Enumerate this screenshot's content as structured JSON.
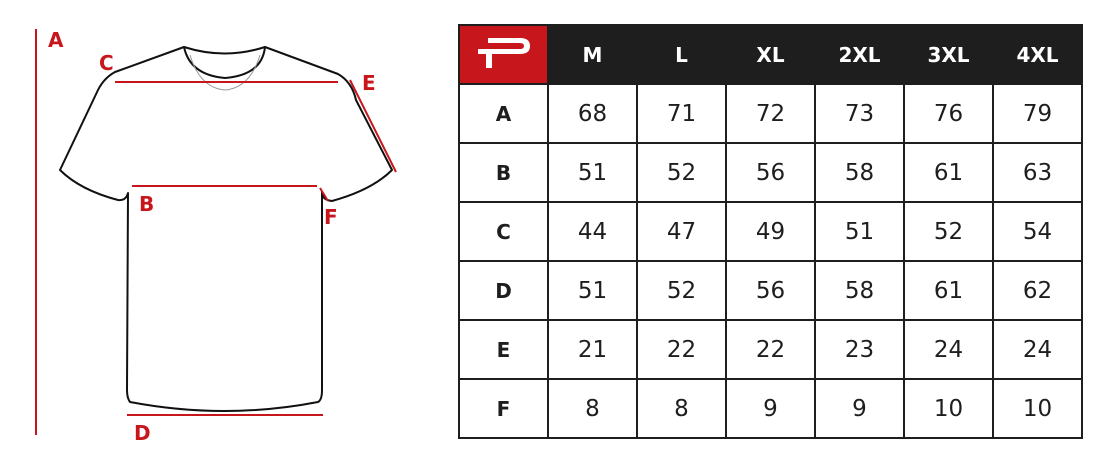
{
  "colors": {
    "accent": "#c8171c",
    "header_bg": "#1e1e1e"
  },
  "logo": {
    "icon": "p-brand-logo"
  },
  "diagram": {
    "labels": {
      "A": "A",
      "B": "B",
      "C": "C",
      "D": "D",
      "E": "E",
      "F": "F"
    }
  },
  "table": {
    "sizes": [
      "M",
      "L",
      "XL",
      "2XL",
      "3XL",
      "4XL"
    ],
    "rows": [
      {
        "label": "A",
        "values": [
          "68",
          "71",
          "72",
          "73",
          "76",
          "79"
        ]
      },
      {
        "label": "B",
        "values": [
          "51",
          "52",
          "56",
          "58",
          "61",
          "63"
        ]
      },
      {
        "label": "C",
        "values": [
          "44",
          "47",
          "49",
          "51",
          "52",
          "54"
        ]
      },
      {
        "label": "D",
        "values": [
          "51",
          "52",
          "56",
          "58",
          "61",
          "62"
        ]
      },
      {
        "label": "E",
        "values": [
          "21",
          "22",
          "22",
          "23",
          "24",
          "24"
        ]
      },
      {
        "label": "F",
        "values": [
          "8",
          "8",
          "9",
          "9",
          "10",
          "10"
        ]
      }
    ]
  }
}
